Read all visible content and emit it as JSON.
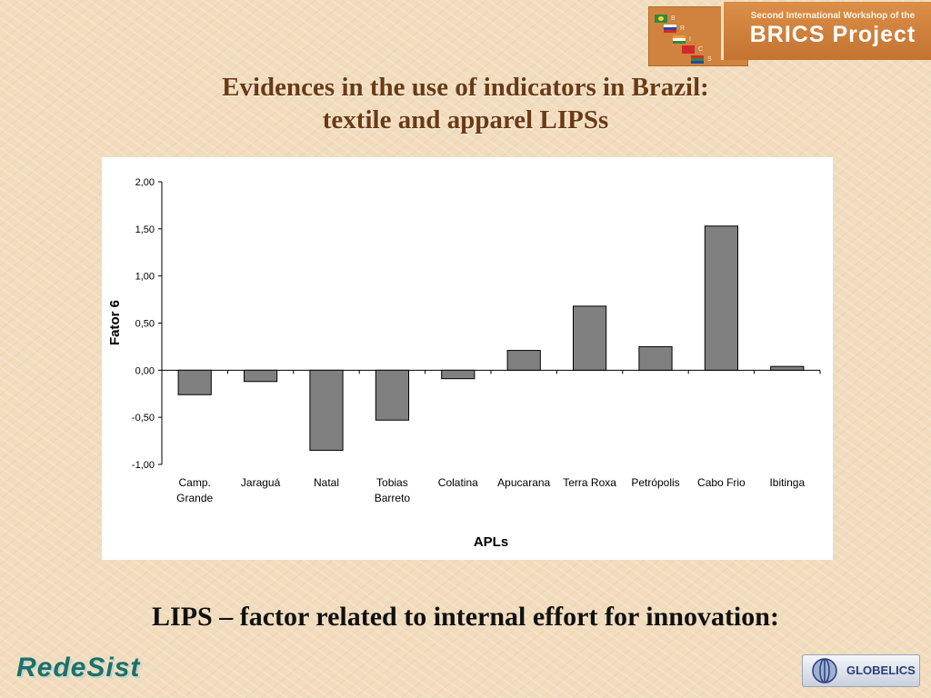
{
  "slide": {
    "title_line1": "Evidences in the use of indicators in Brazil:",
    "title_line2": "textile and apparel LIPSs",
    "caption": "LIPS – factor related to internal effort for innovation:"
  },
  "header_logo": {
    "line1": "Second International Workshop of the",
    "line2": "BRICS Project",
    "letters": [
      "B",
      "R",
      "I",
      "C",
      "S"
    ]
  },
  "footer": {
    "left_logo": "RedeSist",
    "right_logo": "GLOBELICS"
  },
  "colors": {
    "title": "#6b3a14",
    "bar_fill": "#808080",
    "panel": "#ffffff"
  },
  "chart_data": {
    "type": "bar",
    "categories": [
      [
        "Camp.",
        "Grande"
      ],
      [
        "Jaraguá"
      ],
      [
        "Natal"
      ],
      [
        "Tobias",
        "Barreto"
      ],
      [
        "Colatina"
      ],
      [
        "Apucarana"
      ],
      [
        "Terra Roxa"
      ],
      [
        "Petrópolis"
      ],
      [
        "Cabo Frio"
      ],
      [
        "Ibitinga"
      ]
    ],
    "values": [
      -0.26,
      -0.12,
      -0.85,
      -0.53,
      -0.09,
      0.21,
      0.68,
      0.25,
      1.53,
      0.04
    ],
    "xlabel": "APLs",
    "ylabel": "Fator 6",
    "ylim": [
      -1.0,
      2.0
    ],
    "yticks": [
      "2,00",
      "1,50",
      "1,00",
      "0,50",
      "0,00",
      "-0,50",
      "-1,00"
    ],
    "ytick_values": [
      2.0,
      1.5,
      1.0,
      0.5,
      0.0,
      -0.5,
      -1.0
    ],
    "grid": false,
    "legend": "none"
  }
}
